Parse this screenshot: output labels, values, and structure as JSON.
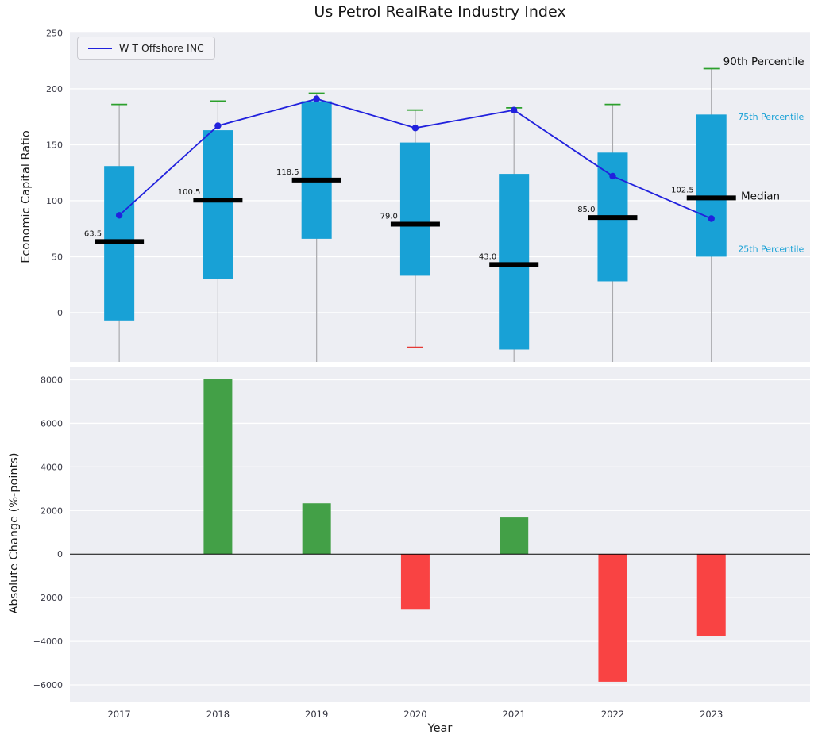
{
  "figure": {
    "axes_background": "#edeef3",
    "grid_color": "#ffffff"
  },
  "chart_data": [
    {
      "type": "boxplot+line",
      "title": "Us Petrol RealRate Industry Index",
      "ylabel": "Economic Capital Ratio",
      "xlabel": "",
      "ylim": [
        -44,
        251
      ],
      "yticks": [
        0,
        50,
        100,
        150,
        200,
        250
      ],
      "grid": true,
      "legend_position": "upper left",
      "categories": [
        2017,
        2018,
        2019,
        2020,
        2021,
        2022,
        2023
      ],
      "box_color": "#18a1d6",
      "whisker_color": "#a9a9ad",
      "p90_cap_color": "#2ca02c",
      "p10_cap_color": "#e53935",
      "median_color": "#000000",
      "boxes": [
        {
          "year": 2017,
          "p10": null,
          "p25": -7,
          "median": 63.5,
          "p75": 131,
          "p90": 186,
          "median_label": "63.5"
        },
        {
          "year": 2018,
          "p10": null,
          "p25": 30,
          "median": 100.5,
          "p75": 163,
          "p90": 189,
          "median_label": "100.5"
        },
        {
          "year": 2019,
          "p10": null,
          "p25": 66,
          "median": 118.5,
          "p75": 189,
          "p90": 196,
          "median_label": "118.5"
        },
        {
          "year": 2020,
          "p10": -31,
          "p25": 33,
          "median": 79.0,
          "p75": 152,
          "p90": 181,
          "median_label": "79.0"
        },
        {
          "year": 2021,
          "p10": null,
          "p25": -33,
          "median": 43.0,
          "p75": 124,
          "p90": 183,
          "median_label": "43.0"
        },
        {
          "year": 2022,
          "p10": null,
          "p25": 28,
          "median": 85.0,
          "p75": 143,
          "p90": 186,
          "median_label": "85.0"
        },
        {
          "year": 2023,
          "p10": null,
          "p25": 50,
          "median": 102.5,
          "p75": 177,
          "p90": 218,
          "median_label": "102.5"
        }
      ],
      "line_series": {
        "name": "W T Offshore INC",
        "color": "#2121dd",
        "values": [
          87,
          167,
          191,
          165,
          181,
          122,
          84
        ]
      },
      "annotations": [
        {
          "text": "90th Percentile",
          "x": 2023.12,
          "y": 224,
          "color": "#111111",
          "size": 13.5
        },
        {
          "text": "75th Percentile",
          "x": 2023.27,
          "y": 175,
          "color": "#18a1d6",
          "size": 11
        },
        {
          "text": "Median",
          "x": 2023.3,
          "y": 104,
          "color": "#111111",
          "size": 13.5
        },
        {
          "text": "25th Percentile",
          "x": 2023.27,
          "y": 57,
          "color": "#18a1d6",
          "size": 11
        }
      ]
    },
    {
      "type": "bar",
      "ylabel": "Absolute Change (%-points)",
      "xlabel": "Year",
      "ylim": [
        -6800,
        8600
      ],
      "yticks": [
        -6000,
        -4000,
        -2000,
        0,
        2000,
        4000,
        6000,
        8000
      ],
      "grid": true,
      "categories": [
        2017,
        2018,
        2019,
        2020,
        2021,
        2022,
        2023
      ],
      "values": [
        0,
        8050,
        2330,
        -2550,
        1680,
        -5850,
        -3750
      ],
      "positive_color": "#43a047",
      "negative_color": "#f94343"
    }
  ]
}
